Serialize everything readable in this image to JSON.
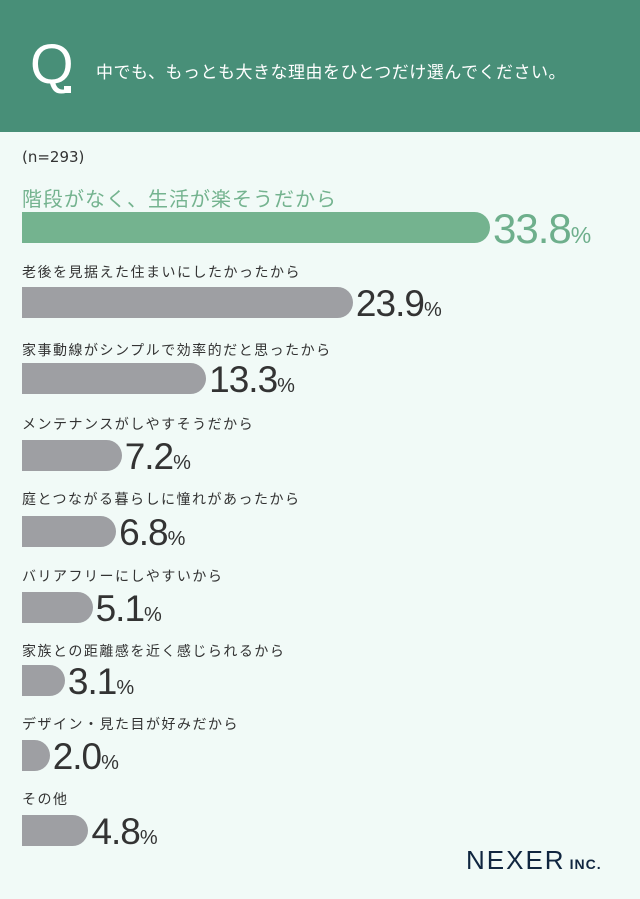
{
  "header": {
    "q_mark": "Q",
    "question": "中でも、もっとも大きな理由をひとつだけ選んでください。"
  },
  "colors": {
    "header": "#488f78",
    "highlight": "#74b38f",
    "bar": "#9e9fa3",
    "background": "#f1faf7"
  },
  "chart_data": {
    "type": "bar",
    "orientation": "horizontal",
    "sample_size": "(n=293)",
    "unit": "%",
    "categories": [
      "階段がなく、生活が楽そうだから",
      "老後を見据えた住まいにしたかったから",
      "家事動線がシンプルで効率的だと思ったから",
      "メンテナンスがしやすそうだから",
      "庭とつながる暮らしに憧れがあったから",
      "バリアフリーにしやすいから",
      "家族との距離感を近く感じられるから",
      "デザイン・見た目が好みだから",
      "その他"
    ],
    "values": [
      33.8,
      23.9,
      13.3,
      7.2,
      6.8,
      5.1,
      3.1,
      2.0,
      4.8
    ],
    "value_labels": [
      "33.8",
      "23.9",
      "13.3",
      "7.2",
      "6.8",
      "5.1",
      "3.1",
      "2.0",
      "4.8"
    ],
    "highlight_index": 0
  },
  "logo": {
    "name": "NEXER",
    "suffix": "INC."
  }
}
